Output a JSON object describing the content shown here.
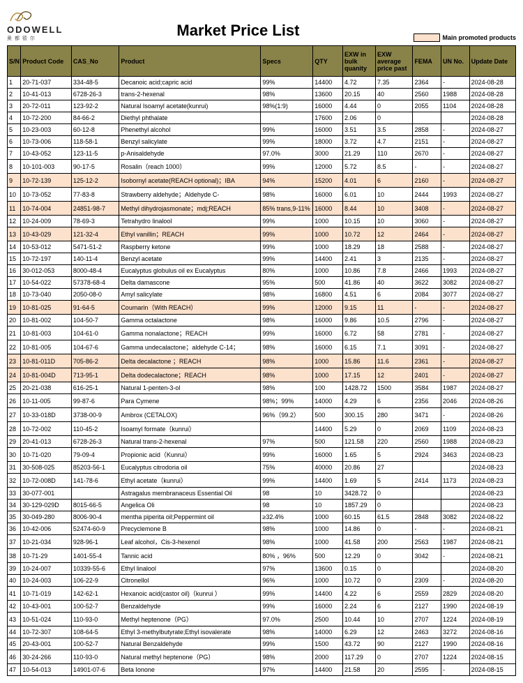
{
  "brand_name": "ODOWELL",
  "brand_sub": "奥 都 德 尔",
  "page_title": "Market Price List",
  "legend_text": "Main promoted products",
  "legend_swatch_color": "#fce1cd",
  "header_bg": "#8a8349",
  "highlight_bg": "#fce1cd",
  "columns": [
    "S/N",
    "Product Code",
    "CAS_No",
    "Product",
    "Specs",
    "QTY",
    "EXW in bulk quanity",
    "EXW average price past",
    "FEMA",
    "UN No.",
    "Update Date"
  ],
  "rows": [
    {
      "sn": "1",
      "code": "20-71-037",
      "cas": "334-48-5",
      "product": "Decanoic acid;capric acid",
      "specs": "99%",
      "qty": "14400",
      "exwb": "4.72",
      "exwa": "7.35",
      "fema": "2364",
      "un": "-",
      "date": "2024-08-28",
      "hl": false
    },
    {
      "sn": "2",
      "code": "10-41-013",
      "cas": "6728-26-3",
      "product": "trans-2-hexenal",
      "specs": "98%",
      "qty": "13600",
      "exwb": "20.15",
      "exwa": "40",
      "fema": "2560",
      "un": "1988",
      "date": "2024-08-28",
      "hl": false
    },
    {
      "sn": "3",
      "code": "20-72-011",
      "cas": "123-92-2",
      "product": "Natural Isoamyl acetate(kunrui)",
      "specs": "98%(1:9)",
      "qty": "16000",
      "exwb": "4.44",
      "exwa": "0",
      "fema": "2055",
      "un": "1104",
      "date": "2024-08-28",
      "hl": false
    },
    {
      "sn": "4",
      "code": "10-72-200",
      "cas": "84-66-2",
      "product": "Diethyl phthalate",
      "specs": "",
      "qty": "17600",
      "exwb": "2.06",
      "exwa": "0",
      "fema": "",
      "un": "",
      "date": "2024-08-28",
      "hl": false
    },
    {
      "sn": "5",
      "code": "10-23-003",
      "cas": "60-12-8",
      "product": "Phenethyl alcohol",
      "specs": "99%",
      "qty": "16000",
      "exwb": "3.51",
      "exwa": "3.5",
      "fema": "2858",
      "un": "-",
      "date": "2024-08-27",
      "hl": false
    },
    {
      "sn": "6",
      "code": "10-73-006",
      "cas": "118-58-1",
      "product": "Benzyl salicylate",
      "specs": "99%",
      "qty": "18000",
      "exwb": "3.72",
      "exwa": "4.7",
      "fema": "2151",
      "un": "-",
      "date": "2024-08-27",
      "hl": false
    },
    {
      "sn": "7",
      "code": "10-43-052",
      "cas": "123-11-5",
      "product": "p-Anisaldehyde",
      "specs": "97.0%",
      "qty": "3000",
      "exwb": "21.29",
      "exwa": "110",
      "fema": "2670",
      "un": "-",
      "date": "2024-08-27",
      "hl": false
    },
    {
      "sn": "8",
      "code": "10-101-003",
      "cas": "90-17-5",
      "product": "Rosalin（reach 1000）",
      "specs": "99%",
      "qty": "12000",
      "exwb": "5.72",
      "exwa": "8.5",
      "fema": "-",
      "un": "-",
      "date": "2024-08-27",
      "hl": false
    },
    {
      "sn": "9",
      "code": "10-72-139",
      "cas": "125-12-2",
      "product": "Isobornyl acetate(REACH optional)；IBA",
      "specs": "94%",
      "qty": "15200",
      "exwb": "4.01",
      "exwa": "6",
      "fema": "2160",
      "un": "-",
      "date": "2024-08-27",
      "hl": true
    },
    {
      "sn": "10",
      "code": "10-73-052",
      "cas": "77-83-8",
      "product": "Strawberry aldehyde；Aldehyde C-",
      "specs": "98%",
      "qty": "16000",
      "exwb": "6.01",
      "exwa": "10",
      "fema": "2444",
      "un": "1993",
      "date": "2024-08-27",
      "hl": false
    },
    {
      "sn": "11",
      "code": "10-74-004",
      "cas": "24851-98-7",
      "product": "Methyl dihydrojasmonate；mdj;REACH",
      "specs": "85% trans,9-11%",
      "qty": "16000",
      "exwb": "8.44",
      "exwa": "10",
      "fema": "3408",
      "un": "-",
      "date": "2024-08-27",
      "hl": true
    },
    {
      "sn": "12",
      "code": "10-24-009",
      "cas": "78-69-3",
      "product": "Tetrahydro linalool",
      "specs": "99%",
      "qty": "1000",
      "exwb": "10.15",
      "exwa": "10",
      "fema": "3060",
      "un": "-",
      "date": "2024-08-27",
      "hl": false
    },
    {
      "sn": "13",
      "code": "10-43-029",
      "cas": "121-32-4",
      "product": "Ethyl vanillin；REACH",
      "specs": "99%",
      "qty": "1000",
      "exwb": "10.72",
      "exwa": "12",
      "fema": "2464",
      "un": "-",
      "date": "2024-08-27",
      "hl": true
    },
    {
      "sn": "14",
      "code": "10-53-012",
      "cas": "5471-51-2",
      "product": "Raspberry ketone",
      "specs": "99%",
      "qty": "1000",
      "exwb": "18.29",
      "exwa": "18",
      "fema": "2588",
      "un": "-",
      "date": "2024-08-27",
      "hl": false
    },
    {
      "sn": "15",
      "code": "10-72-197",
      "cas": "140-11-4",
      "product": "Benzyl acetate",
      "specs": "99%",
      "qty": "14400",
      "exwb": "2.41",
      "exwa": "3",
      "fema": "2135",
      "un": "-",
      "date": "2024-08-27",
      "hl": false
    },
    {
      "sn": "16",
      "code": "30-012-053",
      "cas": "8000-48-4",
      "product": "Eucalyptus globulus oil ex Eucalyptus",
      "specs": "80%",
      "qty": "1000",
      "exwb": "10.86",
      "exwa": "7.8",
      "fema": "2466",
      "un": "1993",
      "date": "2024-08-27",
      "hl": false
    },
    {
      "sn": "17",
      "code": "10-54-022",
      "cas": "57378-68-4",
      "product": "Delta damascone",
      "specs": "95%",
      "qty": "500",
      "exwb": "41.86",
      "exwa": "40",
      "fema": "3622",
      "un": "3082",
      "date": "2024-08-27",
      "hl": false
    },
    {
      "sn": "18",
      "code": "10-73-040",
      "cas": "2050-08-0",
      "product": "Amyl salicylate",
      "specs": "98%",
      "qty": "16800",
      "exwb": "4.51",
      "exwa": "6",
      "fema": "2084",
      "un": "3077",
      "date": "2024-08-27",
      "hl": false
    },
    {
      "sn": "19",
      "code": "10-81-025",
      "cas": "91-64-5",
      "product": "Coumarin（With REACH）",
      "specs": "99%",
      "qty": "12000",
      "exwb": "9.15",
      "exwa": "11",
      "fema": "-",
      "un": "-",
      "date": "2024-08-27",
      "hl": true
    },
    {
      "sn": "20",
      "code": "10-81-002",
      "cas": "104-50-7",
      "product": "Gamma octalactone",
      "specs": "98%",
      "qty": "16000",
      "exwb": "9.86",
      "exwa": "10.5",
      "fema": "2796",
      "un": "-",
      "date": "2024-08-27",
      "hl": false
    },
    {
      "sn": "21",
      "code": "10-81-003",
      "cas": "104-61-0",
      "product": "Gamma nonalactone；REACH",
      "specs": "99%",
      "qty": "16000",
      "exwb": "6.72",
      "exwa": "58",
      "fema": "2781",
      "un": "-",
      "date": "2024-08-27",
      "hl": false
    },
    {
      "sn": "22",
      "code": "10-81-005",
      "cas": "104-67-6",
      "product": "Gamma undecalactone；aldehyde C-14；",
      "specs": "98%",
      "qty": "16000",
      "exwb": "6.15",
      "exwa": "7.1",
      "fema": "3091",
      "un": "-",
      "date": "2024-08-27",
      "hl": false
    },
    {
      "sn": "23",
      "code": "10-81-011D",
      "cas": "705-86-2",
      "product": "Delta decalactone ；REACH",
      "specs": "98%",
      "qty": "1000",
      "exwb": "15.86",
      "exwa": "11.6",
      "fema": "2361",
      "un": "-",
      "date": "2024-08-27",
      "hl": true
    },
    {
      "sn": "24",
      "code": "10-81-004D",
      "cas": "713-95-1",
      "product": "Delta dodecalactone；REACH",
      "specs": "98%",
      "qty": "1000",
      "exwb": "17.15",
      "exwa": "12",
      "fema": "2401",
      "un": "-",
      "date": "2024-08-27",
      "hl": true
    },
    {
      "sn": "25",
      "code": "20-21-038",
      "cas": "616-25-1",
      "product": "Natural 1-penten-3-ol",
      "specs": "98%",
      "qty": "100",
      "exwb": "1428.72",
      "exwa": "1500",
      "fema": "3584",
      "un": "1987",
      "date": "2024-08-27",
      "hl": false
    },
    {
      "sn": "26",
      "code": "10-11-005",
      "cas": "99-87-6",
      "product": "Para Cymene",
      "specs": "98%；99%",
      "qty": "14000",
      "exwb": "4.29",
      "exwa": "6",
      "fema": "2356",
      "un": "2046",
      "date": "2024-08-26",
      "hl": false
    },
    {
      "sn": "27",
      "code": "10-33-018D",
      "cas": "3738-00-9",
      "product": "Ambrox (CETALOX)",
      "specs": "96%（99.2）",
      "qty": "500",
      "exwb": "300.15",
      "exwa": "280",
      "fema": "3471",
      "un": "-",
      "date": "2024-08-26",
      "hl": false
    },
    {
      "sn": "28",
      "code": "10-72-002",
      "cas": "110-45-2",
      "product": "Isoamyl formate（kunrui）",
      "specs": "",
      "qty": "14400",
      "exwb": "5.29",
      "exwa": "0",
      "fema": "2069",
      "un": "1109",
      "date": "2024-08-23",
      "hl": false
    },
    {
      "sn": "29",
      "code": "20-41-013",
      "cas": "6728-26-3",
      "product": "Natural trans-2-hexenal",
      "specs": "97%",
      "qty": "500",
      "exwb": "121.58",
      "exwa": "220",
      "fema": "2560",
      "un": "1988",
      "date": "2024-08-23",
      "hl": false
    },
    {
      "sn": "30",
      "code": "10-71-020",
      "cas": "79-09-4",
      "product": "Propionic acid（Kunrui）",
      "specs": "99%",
      "qty": "16000",
      "exwb": "1.65",
      "exwa": "5",
      "fema": "2924",
      "un": "3463",
      "date": "2024-08-23",
      "hl": false
    },
    {
      "sn": "31",
      "code": "30-508-025",
      "cas": "85203-56-1",
      "product": "Eucalyptus citrodoria oil",
      "specs": "75%",
      "qty": "40000",
      "exwb": "20.86",
      "exwa": "27",
      "fema": "",
      "un": "",
      "date": "2024-08-23",
      "hl": false
    },
    {
      "sn": "32",
      "code": "10-72-008D",
      "cas": "141-78-6",
      "product": "Ethyl acetate（kunrui）",
      "specs": "99%",
      "qty": "14400",
      "exwb": "1.69",
      "exwa": "5",
      "fema": "2414",
      "un": "1173",
      "date": "2024-08-23",
      "hl": false
    },
    {
      "sn": "33",
      "code": "30-077-001",
      "cas": "",
      "product": "Astragalus membranaceus Essential Oil",
      "specs": "98",
      "qty": "10",
      "exwb": "3428.72",
      "exwa": "0",
      "fema": "",
      "un": "",
      "date": "2024-08-23",
      "hl": false
    },
    {
      "sn": "34",
      "code": "30-129-029D",
      "cas": "8015-66-5",
      "product": "Angelica Oli",
      "specs": "98",
      "qty": "10",
      "exwb": "1857.29",
      "exwa": "0",
      "fema": "",
      "un": "",
      "date": "2024-08-23",
      "hl": false
    },
    {
      "sn": "35",
      "code": "30-049-280",
      "cas": "8006-90-4",
      "product": "mentha piperita oil;Peppermint oil",
      "specs": "≥32.4%",
      "qty": "1000",
      "exwb": "60.15",
      "exwa": "61.5",
      "fema": "2848",
      "un": "3082",
      "date": "2024-08-22",
      "hl": false
    },
    {
      "sn": "36",
      "code": "10-42-006",
      "cas": "52474-60-9",
      "product": "Precyclemone B",
      "specs": "98%",
      "qty": "1000",
      "exwb": "14.86",
      "exwa": "0",
      "fema": "-",
      "un": "-",
      "date": "2024-08-21",
      "hl": false
    },
    {
      "sn": "37",
      "code": "10-21-034",
      "cas": "928-96-1",
      "product": "Leaf alcohol，Cis-3-hexenol",
      "specs": "98%",
      "qty": "1000",
      "exwb": "41.58",
      "exwa": "200",
      "fema": "2563",
      "un": "1987",
      "date": "2024-08-21",
      "hl": false
    },
    {
      "sn": "38",
      "code": "10-71-29",
      "cas": "1401-55-4",
      "product": "Tannic acid",
      "specs": "80% ，96%",
      "qty": "500",
      "exwb": "12.29",
      "exwa": "0",
      "fema": "3042",
      "un": "-",
      "date": "2024-08-21",
      "hl": false
    },
    {
      "sn": "39",
      "code": "10-24-007",
      "cas": "10339-55-6",
      "product": "Ethyl linalool",
      "specs": "97%",
      "qty": "13600",
      "exwb": "0.15",
      "exwa": "0",
      "fema": "",
      "un": "",
      "date": "2024-08-20",
      "hl": false
    },
    {
      "sn": "40",
      "code": "10-24-003",
      "cas": "106-22-9",
      "product": "Citronellol",
      "specs": "96%",
      "qty": "1000",
      "exwb": "10.72",
      "exwa": "0",
      "fema": "2309",
      "un": "-",
      "date": "2024-08-20",
      "hl": false
    },
    {
      "sn": "41",
      "code": "10-71-019",
      "cas": "142-62-1",
      "product": "Hexanoic acid(castor oil)（kunrui ）",
      "specs": "99%",
      "qty": "14400",
      "exwb": "4.22",
      "exwa": "6",
      "fema": "2559",
      "un": "2829",
      "date": "2024-08-20",
      "hl": false
    },
    {
      "sn": "42",
      "code": "10-43-001",
      "cas": "100-52-7",
      "product": "Benzaldehyde",
      "specs": "99%",
      "qty": "16000",
      "exwb": "2.24",
      "exwa": "6",
      "fema": "2127",
      "un": "1990",
      "date": "2024-08-19",
      "hl": false
    },
    {
      "sn": "43",
      "code": "10-51-024",
      "cas": "110-93-0",
      "product": "Methyl heptenone（PG）",
      "specs": "97.0%",
      "qty": "2500",
      "exwb": "10.44",
      "exwa": "10",
      "fema": "2707",
      "un": "1224",
      "date": "2024-08-19",
      "hl": false
    },
    {
      "sn": "44",
      "code": "10-72-307",
      "cas": "108-64-5",
      "product": "Ethyl 3-methylbutyrate;Ethyl isovalerate",
      "specs": "98%",
      "qty": "14000",
      "exwb": "6.29",
      "exwa": "12",
      "fema": "2463",
      "un": "3272",
      "date": "2024-08-16",
      "hl": false
    },
    {
      "sn": "45",
      "code": "20-43-001",
      "cas": "100-52-7",
      "product": "Natural Benzaldehyde",
      "specs": "99%",
      "qty": "1500",
      "exwb": "43.72",
      "exwa": "90",
      "fema": "2127",
      "un": "1990",
      "date": "2024-08-16",
      "hl": false
    },
    {
      "sn": "46",
      "code": "30-24-266",
      "cas": "110-93-0",
      "product": "Natural methyl heptenone（PG）",
      "specs": "98%",
      "qty": "2000",
      "exwb": "117.29",
      "exwa": "0",
      "fema": "2707",
      "un": "1224",
      "date": "2024-08-15",
      "hl": false
    },
    {
      "sn": "47",
      "code": "10-54-013",
      "cas": "14901-07-6",
      "product": "Beta Ionone",
      "specs": "97%",
      "qty": "14400",
      "exwb": "21.58",
      "exwa": "20",
      "fema": "2595",
      "un": "-",
      "date": "2024-08-15",
      "hl": false
    }
  ]
}
